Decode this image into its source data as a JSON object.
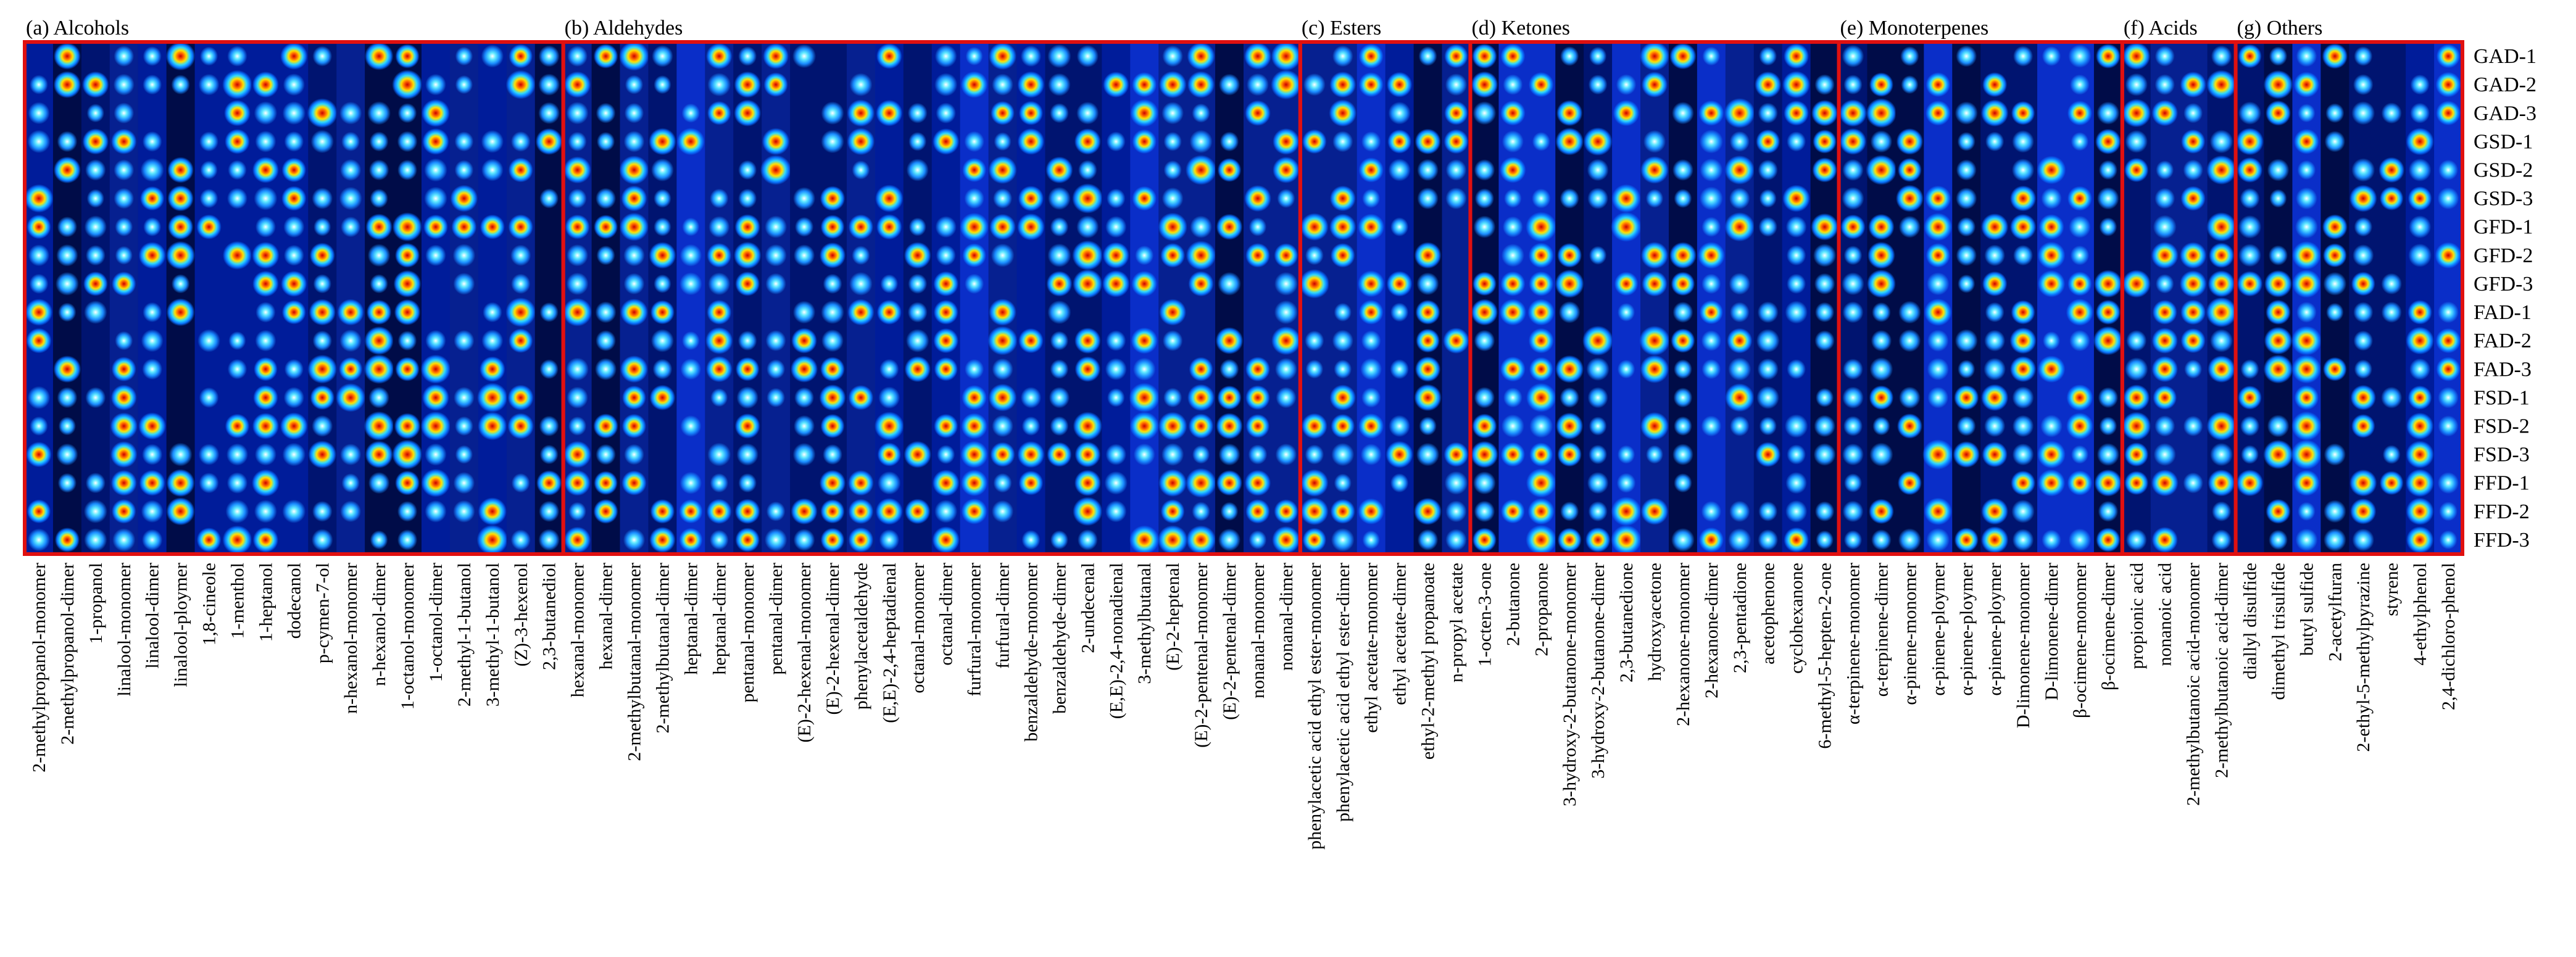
{
  "chart_data": {
    "type": "heatmap",
    "title": "",
    "xlabel": "",
    "ylabel": "",
    "grid": false,
    "color_scale": [
      "#000a3c",
      "#0028c8",
      "#0a78ff",
      "#28d2ff",
      "#ffdc00",
      "#ff5a00",
      "#c80000"
    ],
    "frame_color": "#e01010",
    "rows": [
      "GAD-1",
      "GAD-2",
      "GAD-3",
      "GSD-1",
      "GSD-2",
      "GSD-3",
      "GFD-1",
      "GFD-2",
      "GFD-3",
      "FAD-1",
      "FAD-2",
      "FAD-3",
      "FSD-1",
      "FSD-2",
      "FSD-3",
      "FFD-1",
      "FFD-2",
      "FFD-3"
    ],
    "panels": [
      {
        "title": "(a) Alcohols",
        "columns": [
          "2-methylpropanol-monomer",
          "2-methylpropanol-dimer",
          "1-propanol",
          "linalool-monomer",
          "linalool-dimer",
          "linalool-ploymer",
          "1,8-cineole",
          "1-menthol",
          "1-heptanol",
          "dodecanol",
          "p-cymen-7-ol",
          "n-hexanol-monomer",
          "n-hexanol-dimer",
          "1-octanol-monomer",
          "1-octanol-dimer",
          "2-methyl-1-butanol",
          "3-methyl-1-butanol",
          "(Z)-3-hexenol",
          "2,3-butanediol"
        ]
      },
      {
        "title": "(b) Aldehydes",
        "columns": [
          "hexanal-monomer",
          "hexanal-dimer",
          "2-methylbutanal-monomer",
          "2-methylbutanal-dimer",
          "heptanal-dimer",
          "heptanal-dimer",
          "pentanal-monomer",
          "pentanal-dimer",
          "(E)-2-hexenal-monomer",
          "(E)-2-hexenal-dimer",
          "phenylacetaldehyde",
          "(E,E)-2,4-heptadienal",
          "octanal-monomer",
          "octanal-dimer",
          "furfural-monomer",
          "furfural-dimer",
          "benzaldehyde-monomer",
          "benzaldehyde-dimer",
          "2-undecenal",
          "(E,E)-2,4-nonadienal",
          "3-methylbutanal",
          "(E)-2-heptenal",
          "(E)-2-pentenal-monomer",
          "(E)-2-pentenal-dimer",
          "nonanal-monomer",
          "nonanal-dimer"
        ]
      },
      {
        "title": "(c) Esters",
        "columns": [
          "phenylacetic acid ethyl ester-monomer",
          "phenylacetic acid ethyl ester-dimer",
          "ethyl acetate-monomer",
          "ethyl acetate-dimer",
          "ethyl-2-methyl propanoate",
          "n-propyl acetate"
        ]
      },
      {
        "title": "(d) Ketones",
        "columns": [
          "1-octen-3-one",
          "2-butanone",
          "2-propanone",
          "3-hydroxy-2-butanone-monomer",
          "3-hydroxy-2-butanone-dimer",
          "2,3-butanedione",
          "hydroxyacetone",
          "2-hexanone-monomer",
          "2-hexanone-dimer",
          "2,3-pentadione",
          "acetophenone",
          "cyclohexanone",
          "6-methyl-5-hepten-2-one"
        ]
      },
      {
        "title": "(e) Monoterpenes",
        "columns": [
          "α-terpinene-monomer",
          "α-terpinene-dimer",
          "α-pinene-monomer",
          "α-pinene-ploymer",
          "α-pinene-ploymer",
          "α-pinene-ploymer",
          "D-limonene-monomer",
          "D-limonene-dimer",
          "β-ocimene-monomer",
          "β-ocimene-dimer"
        ]
      },
      {
        "title": "(f) Acids",
        "columns": [
          "propionic acid",
          "nonanoic acid",
          "2-methylbutanoic acid-monomer",
          "2-methylbutanoic acid-dimer"
        ]
      },
      {
        "title": "(g) Others",
        "columns": [
          "diallyl disulfide",
          "dimethyl trisulfide",
          "butyl sulfide",
          "2-acetylfuran",
          "2-ethyl-5-methylpyrazine",
          "styrene",
          "4-ethylphenol",
          "2,4-dichloro-phenol"
        ]
      }
    ]
  }
}
